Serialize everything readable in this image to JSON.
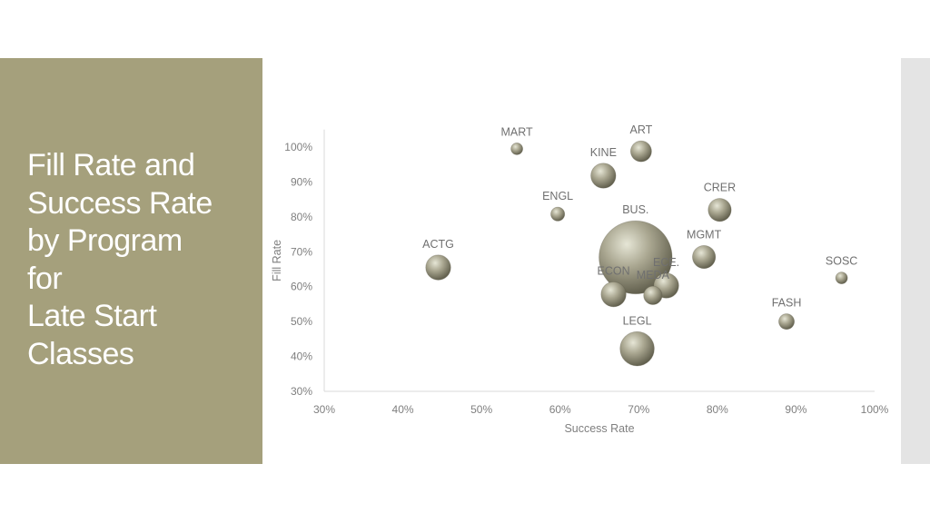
{
  "slide": {
    "title_lines": [
      "Fill Rate and",
      "Success Rate",
      "by Program",
      "for",
      "Late Start",
      "Classes"
    ]
  },
  "colors": {
    "panel": "#a5a07c",
    "bubble_light": "#e6e6d6",
    "bubble_mid": "#aaa791",
    "bubble_dark": "#5f5d4b",
    "axis": "#d9d9d9"
  },
  "chart_data": {
    "type": "scatter",
    "variant": "bubble",
    "title": "",
    "xlabel": "Success Rate",
    "ylabel": "Fill Rate",
    "xlim": [
      0.3,
      1.0
    ],
    "ylim": [
      0.3,
      1.05
    ],
    "x_ticks": [
      "30%",
      "40%",
      "50%",
      "60%",
      "70%",
      "80%",
      "90%",
      "100%"
    ],
    "y_ticks": [
      "30%",
      "40%",
      "50%",
      "60%",
      "70%",
      "80%",
      "90%",
      "100%"
    ],
    "x_tick_values": [
      0.3,
      0.4,
      0.5,
      0.6,
      0.7,
      0.8,
      0.9,
      1.0
    ],
    "y_tick_values": [
      0.3,
      0.4,
      0.5,
      0.6,
      0.7,
      0.8,
      0.9,
      1.0
    ],
    "grid": false,
    "legend": "none",
    "points": [
      {
        "label": "MART",
        "x": 0.545,
        "y": 0.995,
        "size": 1
      },
      {
        "label": "ART",
        "x": 0.703,
        "y": 0.988,
        "size": 4
      },
      {
        "label": "KINE",
        "x": 0.655,
        "y": 0.918,
        "size": 6
      },
      {
        "label": "CRER",
        "x": 0.803,
        "y": 0.82,
        "size": 5
      },
      {
        "label": "ENGL",
        "x": 0.597,
        "y": 0.808,
        "size": 1.5
      },
      {
        "label": "BUS.",
        "x": 0.696,
        "y": 0.684,
        "size": 60
      },
      {
        "label": "MGMT",
        "x": 0.783,
        "y": 0.685,
        "size": 5
      },
      {
        "label": "ACTG",
        "x": 0.445,
        "y": 0.655,
        "size": 6
      },
      {
        "label": "SOSC",
        "x": 0.958,
        "y": 0.625,
        "size": 1
      },
      {
        "label": "ECE.",
        "x": 0.735,
        "y": 0.603,
        "size": 6
      },
      {
        "label": "ECON",
        "x": 0.668,
        "y": 0.578,
        "size": 6
      },
      {
        "label": "MEDA",
        "x": 0.718,
        "y": 0.575,
        "size": 3
      },
      {
        "label": "FASH",
        "x": 0.888,
        "y": 0.5,
        "size": 2
      },
      {
        "label": "LEGL",
        "x": 0.698,
        "y": 0.422,
        "size": 12
      }
    ]
  }
}
